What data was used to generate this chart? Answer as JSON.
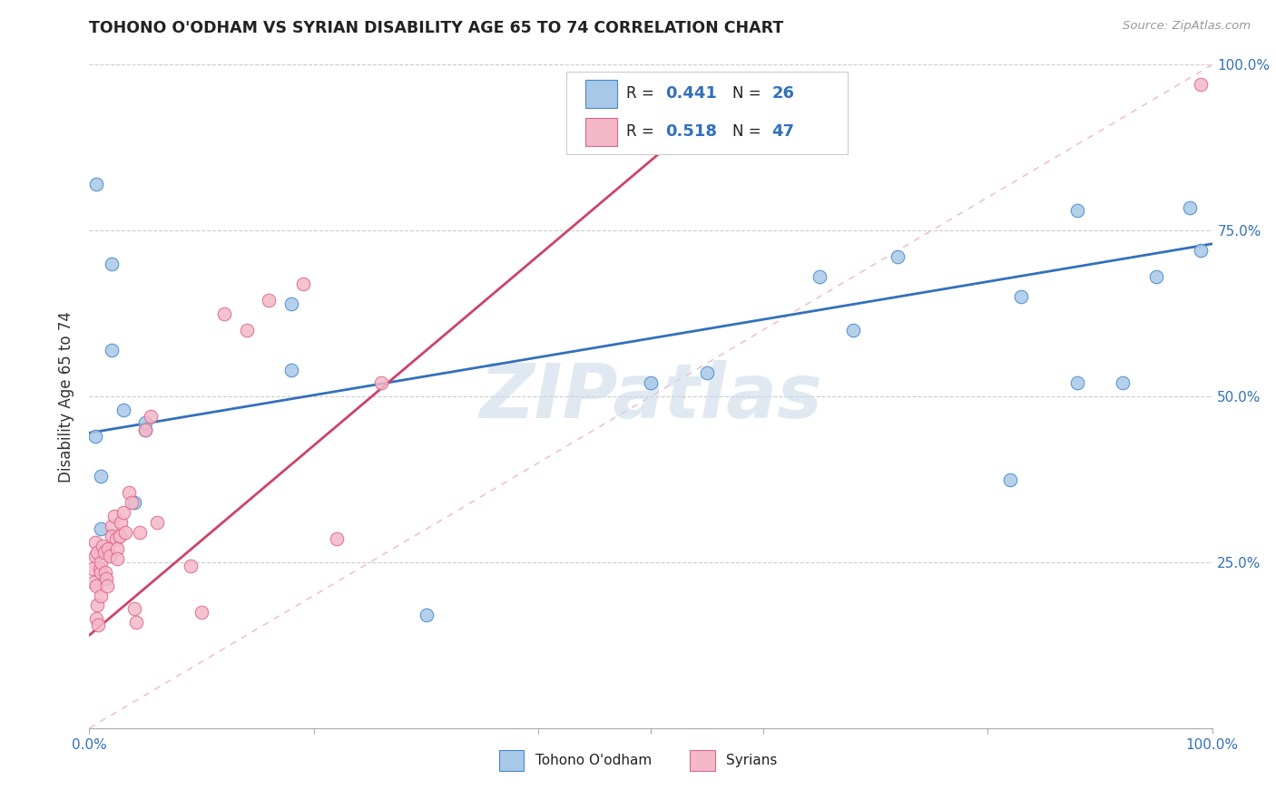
{
  "title": "TOHONO O'ODHAM VS SYRIAN DISABILITY AGE 65 TO 74 CORRELATION CHART",
  "source": "Source: ZipAtlas.com",
  "ylabel": "Disability Age 65 to 74",
  "xlim": [
    0,
    1
  ],
  "ylim": [
    0,
    1
  ],
  "legend_label1": "Tohono O'odham",
  "legend_label2": "Syrians",
  "R1": 0.441,
  "N1": 26,
  "R2": 0.518,
  "N2": 47,
  "color_blue_fill": "#a8c8e8",
  "color_pink_fill": "#f4b8c8",
  "color_blue_edge": "#4488cc",
  "color_pink_edge": "#dd6688",
  "color_blue_line": "#3370bb",
  "color_pink_line": "#cc4466",
  "color_diag": "#f0b8c0",
  "watermark": "ZIPatlas",
  "tohono_x": [
    0.005,
    0.006,
    0.01,
    0.01,
    0.02,
    0.02,
    0.03,
    0.04,
    0.05,
    0.05,
    0.18,
    0.18,
    0.3,
    0.5,
    0.55,
    0.65,
    0.68,
    0.72,
    0.82,
    0.83,
    0.88,
    0.88,
    0.92,
    0.95,
    0.98,
    0.99
  ],
  "tohono_y": [
    0.44,
    0.82,
    0.38,
    0.3,
    0.57,
    0.7,
    0.48,
    0.34,
    0.45,
    0.46,
    0.54,
    0.64,
    0.17,
    0.52,
    0.535,
    0.68,
    0.6,
    0.71,
    0.375,
    0.65,
    0.52,
    0.78,
    0.52,
    0.68,
    0.785,
    0.72
  ],
  "syrian_x": [
    0.003,
    0.004,
    0.005,
    0.005,
    0.006,
    0.006,
    0.007,
    0.007,
    0.008,
    0.009,
    0.01,
    0.01,
    0.01,
    0.012,
    0.013,
    0.014,
    0.015,
    0.016,
    0.017,
    0.018,
    0.02,
    0.02,
    0.022,
    0.024,
    0.025,
    0.025,
    0.027,
    0.028,
    0.03,
    0.032,
    0.035,
    0.038,
    0.04,
    0.042,
    0.045,
    0.05,
    0.055,
    0.06,
    0.09,
    0.1,
    0.12,
    0.14,
    0.16,
    0.19,
    0.22,
    0.26,
    0.99
  ],
  "syrian_y": [
    0.24,
    0.22,
    0.26,
    0.28,
    0.215,
    0.165,
    0.265,
    0.185,
    0.155,
    0.24,
    0.235,
    0.25,
    0.2,
    0.275,
    0.265,
    0.235,
    0.225,
    0.215,
    0.27,
    0.26,
    0.305,
    0.29,
    0.32,
    0.285,
    0.27,
    0.255,
    0.29,
    0.31,
    0.325,
    0.295,
    0.355,
    0.34,
    0.18,
    0.16,
    0.295,
    0.45,
    0.47,
    0.31,
    0.245,
    0.175,
    0.625,
    0.6,
    0.645,
    0.67,
    0.285,
    0.52,
    0.97
  ],
  "blue_line_x0": 0.0,
  "blue_line_y0": 0.445,
  "blue_line_x1": 1.0,
  "blue_line_y1": 0.73,
  "pink_line_x0": 0.0,
  "pink_line_y0": 0.14,
  "pink_line_x1": 0.58,
  "pink_line_y1": 0.97
}
